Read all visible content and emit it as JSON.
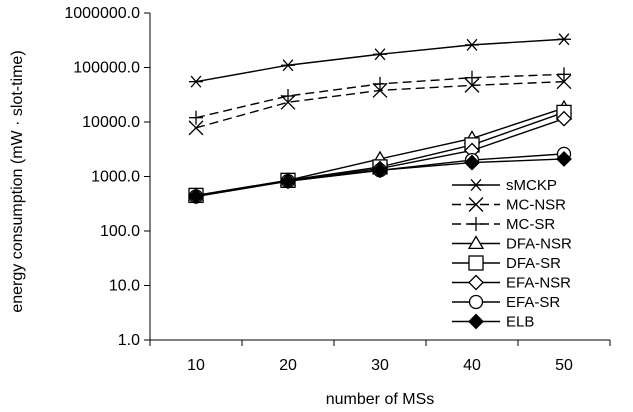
{
  "chart_data": {
    "type": "line",
    "title": "",
    "xlabel": "number of MSs",
    "ylabel": "energy consumption (mW · slot-time)",
    "yscale": "log",
    "ylim": [
      1.0,
      1000000.0
    ],
    "y_ticks": [
      "1.0",
      "10.0",
      "100.0",
      "1000.0",
      "10000.0",
      "100000.0",
      "1000000.0"
    ],
    "x": [
      10,
      20,
      30,
      40,
      50
    ],
    "x_ticks": [
      "10",
      "20",
      "30",
      "40",
      "50"
    ],
    "grid": false,
    "legend_position": "bottom-right",
    "series": [
      {
        "name": "sMCKP",
        "marker": "asterisk",
        "dash": "solid",
        "values": [
          55000,
          110000,
          175000,
          260000,
          330000
        ]
      },
      {
        "name": "MC-NSR",
        "marker": "x",
        "dash": "dashed",
        "values": [
          7800,
          23000,
          38000,
          47000,
          55000
        ]
      },
      {
        "name": "MC-SR",
        "marker": "plus",
        "dash": "dashed",
        "values": [
          12000,
          30000,
          50000,
          65000,
          75000
        ]
      },
      {
        "name": "DFA-NSR",
        "marker": "triangle",
        "dash": "solid",
        "values": [
          450,
          850,
          2100,
          5000,
          18000
        ]
      },
      {
        "name": "DFA-SR",
        "marker": "square",
        "dash": "solid",
        "values": [
          450,
          850,
          1500,
          3800,
          15000
        ]
      },
      {
        "name": "EFA-NSR",
        "marker": "diamond",
        "dash": "solid",
        "values": [
          440,
          830,
          1400,
          3000,
          11500
        ]
      },
      {
        "name": "EFA-SR",
        "marker": "circle",
        "dash": "solid",
        "values": [
          430,
          820,
          1300,
          2000,
          2600
        ]
      },
      {
        "name": "ELB",
        "marker": "filled-diamond",
        "dash": "solid",
        "values": [
          430,
          820,
          1300,
          1800,
          2100
        ]
      }
    ]
  }
}
